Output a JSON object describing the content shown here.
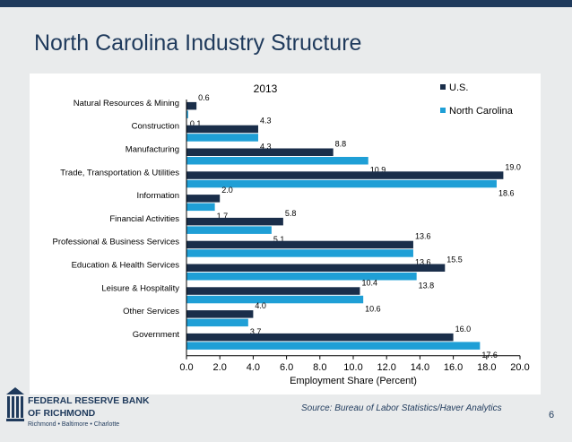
{
  "slide": {
    "title": "North Carolina Industry Structure",
    "source": "Source: Bureau of Labor Statistics/Haver Analytics",
    "page_number": "6"
  },
  "logo": {
    "line1": "FEDERAL RESERVE BANK",
    "line2": "OF RICHMOND",
    "line3": "Richmond • Baltimore • Charlotte"
  },
  "colors": {
    "title": "#1f3a5c",
    "us_series": "#1a2e4a",
    "nc_series": "#1f9fd6"
  },
  "chart_data": {
    "type": "bar",
    "orientation": "horizontal",
    "title": "2013",
    "xlabel": "Employment Share (Percent)",
    "ylabel": "",
    "xlim": [
      0,
      20
    ],
    "xticks": [
      "0.0",
      "2.0",
      "4.0",
      "6.0",
      "8.0",
      "10.0",
      "12.0",
      "14.0",
      "16.0",
      "18.0",
      "20.0"
    ],
    "grid": false,
    "legend_position": "top-right",
    "categories": [
      "Natural Resources & Mining",
      "Construction",
      "Manufacturing",
      "Trade, Transportation & Utilities",
      "Information",
      "Financial Activities",
      "Professional & Business Services",
      "Education & Health Services",
      "Leisure & Hospitality",
      "Other Services",
      "Government"
    ],
    "series": [
      {
        "name": "U.S.",
        "values": [
          0.6,
          4.3,
          8.8,
          19.0,
          2.0,
          5.8,
          13.6,
          15.5,
          10.4,
          4.0,
          16.0
        ],
        "labels": [
          "0.6",
          "4.3",
          "8.8",
          "19.0",
          "2.0",
          "5.8",
          "13.6",
          "15.5",
          "10.4",
          "4.0",
          "16.0"
        ]
      },
      {
        "name": "North Carolina",
        "values": [
          0.1,
          4.3,
          10.9,
          18.6,
          1.7,
          5.1,
          13.6,
          13.8,
          10.6,
          3.7,
          17.6
        ],
        "labels": [
          "0.1",
          "4.3",
          "10.9",
          "18.6",
          "1.7",
          "5.1",
          "13.6",
          "13.8",
          "10.6",
          "3.7",
          "17.6"
        ]
      }
    ]
  }
}
